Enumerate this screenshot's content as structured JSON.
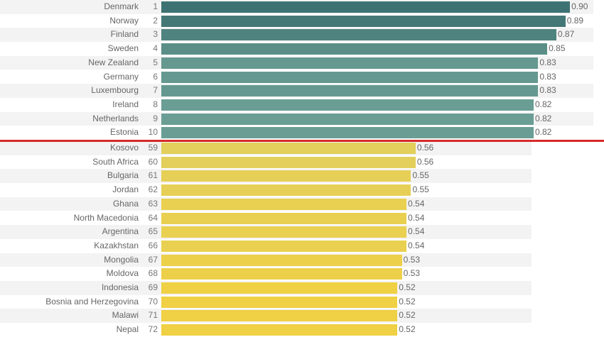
{
  "chart_data": {
    "type": "bar",
    "orientation": "horizontal",
    "title": "",
    "xlabel": "",
    "ylabel": "",
    "xlim": [
      0,
      1
    ],
    "grid": false,
    "groups": [
      {
        "color_range": [
          "#3e7272",
          "#6a9e94"
        ],
        "rows": [
          {
            "country": "Denmark",
            "rank": 1,
            "value": 0.9,
            "label": "0.90"
          },
          {
            "country": "Norway",
            "rank": 2,
            "value": 0.89,
            "label": "0.89"
          },
          {
            "country": "Finland",
            "rank": 3,
            "value": 0.87,
            "label": "0.87"
          },
          {
            "country": "Sweden",
            "rank": 4,
            "value": 0.85,
            "label": "0.85"
          },
          {
            "country": "New Zealand",
            "rank": 5,
            "value": 0.83,
            "label": "0.83"
          },
          {
            "country": "Germany",
            "rank": 6,
            "value": 0.83,
            "label": "0.83"
          },
          {
            "country": "Luxembourg",
            "rank": 7,
            "value": 0.83,
            "label": "0.83"
          },
          {
            "country": "Ireland",
            "rank": 8,
            "value": 0.82,
            "label": "0.82"
          },
          {
            "country": "Netherlands",
            "rank": 9,
            "value": 0.82,
            "label": "0.82"
          },
          {
            "country": "Estonia",
            "rank": 10,
            "value": 0.82,
            "label": "0.82"
          }
        ]
      },
      {
        "color_range": [
          "#e2cf5c",
          "#f0d044"
        ],
        "rows": [
          {
            "country": "Kosovo",
            "rank": 59,
            "value": 0.56,
            "label": "0.56"
          },
          {
            "country": "South Africa",
            "rank": 60,
            "value": 0.56,
            "label": "0.56"
          },
          {
            "country": "Bulgaria",
            "rank": 61,
            "value": 0.55,
            "label": "0.55"
          },
          {
            "country": "Jordan",
            "rank": 62,
            "value": 0.55,
            "label": "0.55"
          },
          {
            "country": "Ghana",
            "rank": 63,
            "value": 0.54,
            "label": "0.54"
          },
          {
            "country": "North Macedonia",
            "rank": 64,
            "value": 0.54,
            "label": "0.54"
          },
          {
            "country": "Argentina",
            "rank": 65,
            "value": 0.54,
            "label": "0.54"
          },
          {
            "country": "Kazakhstan",
            "rank": 66,
            "value": 0.54,
            "label": "0.54"
          },
          {
            "country": "Mongolia",
            "rank": 67,
            "value": 0.53,
            "label": "0.53"
          },
          {
            "country": "Moldova",
            "rank": 68,
            "value": 0.53,
            "label": "0.53"
          },
          {
            "country": "Indonesia",
            "rank": 69,
            "value": 0.52,
            "label": "0.52"
          },
          {
            "country": "Bosnia and Herzegovina",
            "rank": 70,
            "value": 0.52,
            "label": "0.52"
          },
          {
            "country": "Malawi",
            "rank": 71,
            "value": 0.52,
            "label": "0.52"
          },
          {
            "country": "Nepal",
            "rank": 72,
            "value": 0.52,
            "label": "0.52"
          }
        ]
      }
    ],
    "separator_color": "#d62a2a",
    "row_stripe_color": "#f3f3f3"
  }
}
